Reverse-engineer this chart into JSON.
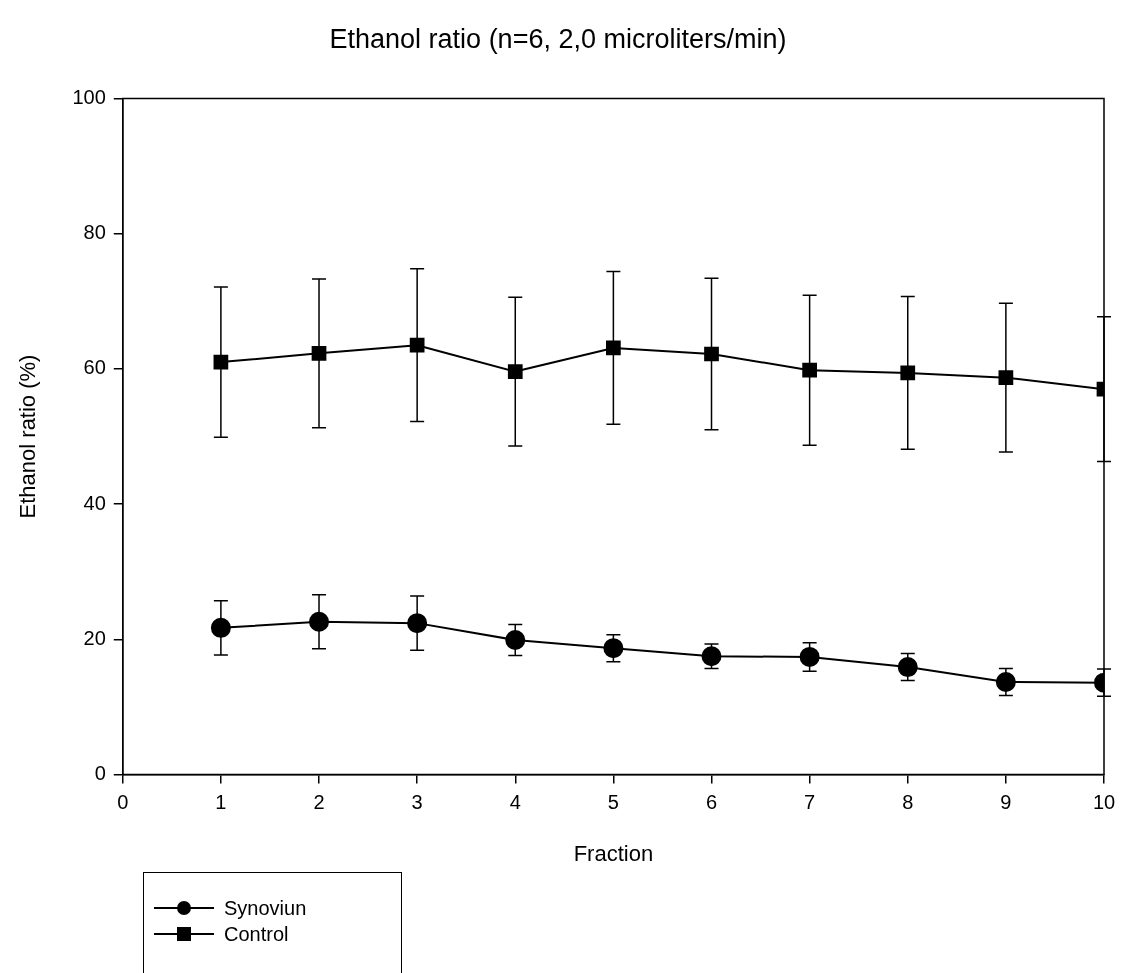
{
  "chart_data": {
    "type": "line",
    "title": "Ethanol ratio (n=6, 2,0 microliters/min)",
    "xlabel": "Fraction",
    "ylabel": "Ethanol ratio (%)",
    "x": [
      1,
      2,
      3,
      4,
      5,
      6,
      7,
      8,
      9,
      10
    ],
    "series": [
      {
        "name": "Synoviun",
        "color": "#000000",
        "marker": "circle",
        "values": [
          21.7,
          22.6,
          22.4,
          19.9,
          18.7,
          17.5,
          17.4,
          15.9,
          13.7,
          13.6
        ],
        "errors": [
          4.0,
          4.0,
          4.0,
          2.3,
          2.0,
          1.8,
          2.1,
          2.0,
          2.0,
          2.0
        ]
      },
      {
        "name": "Control",
        "color": "#000000",
        "marker": "square",
        "values": [
          61.0,
          62.3,
          63.5,
          59.6,
          63.1,
          62.2,
          59.8,
          59.4,
          58.7,
          57.0
        ],
        "errors": [
          11.1,
          11.0,
          11.3,
          11.0,
          11.3,
          11.2,
          11.1,
          11.3,
          11.0,
          10.7
        ]
      }
    ],
    "xlim": [
      0,
      10
    ],
    "xticks": [
      0,
      1,
      2,
      3,
      4,
      5,
      6,
      7,
      8,
      9,
      10
    ],
    "ylim": [
      0,
      100
    ],
    "yticks": [
      0,
      20,
      40,
      60,
      80,
      100
    ],
    "grid": false,
    "legend": "bottom left",
    "line_style": "solid"
  }
}
